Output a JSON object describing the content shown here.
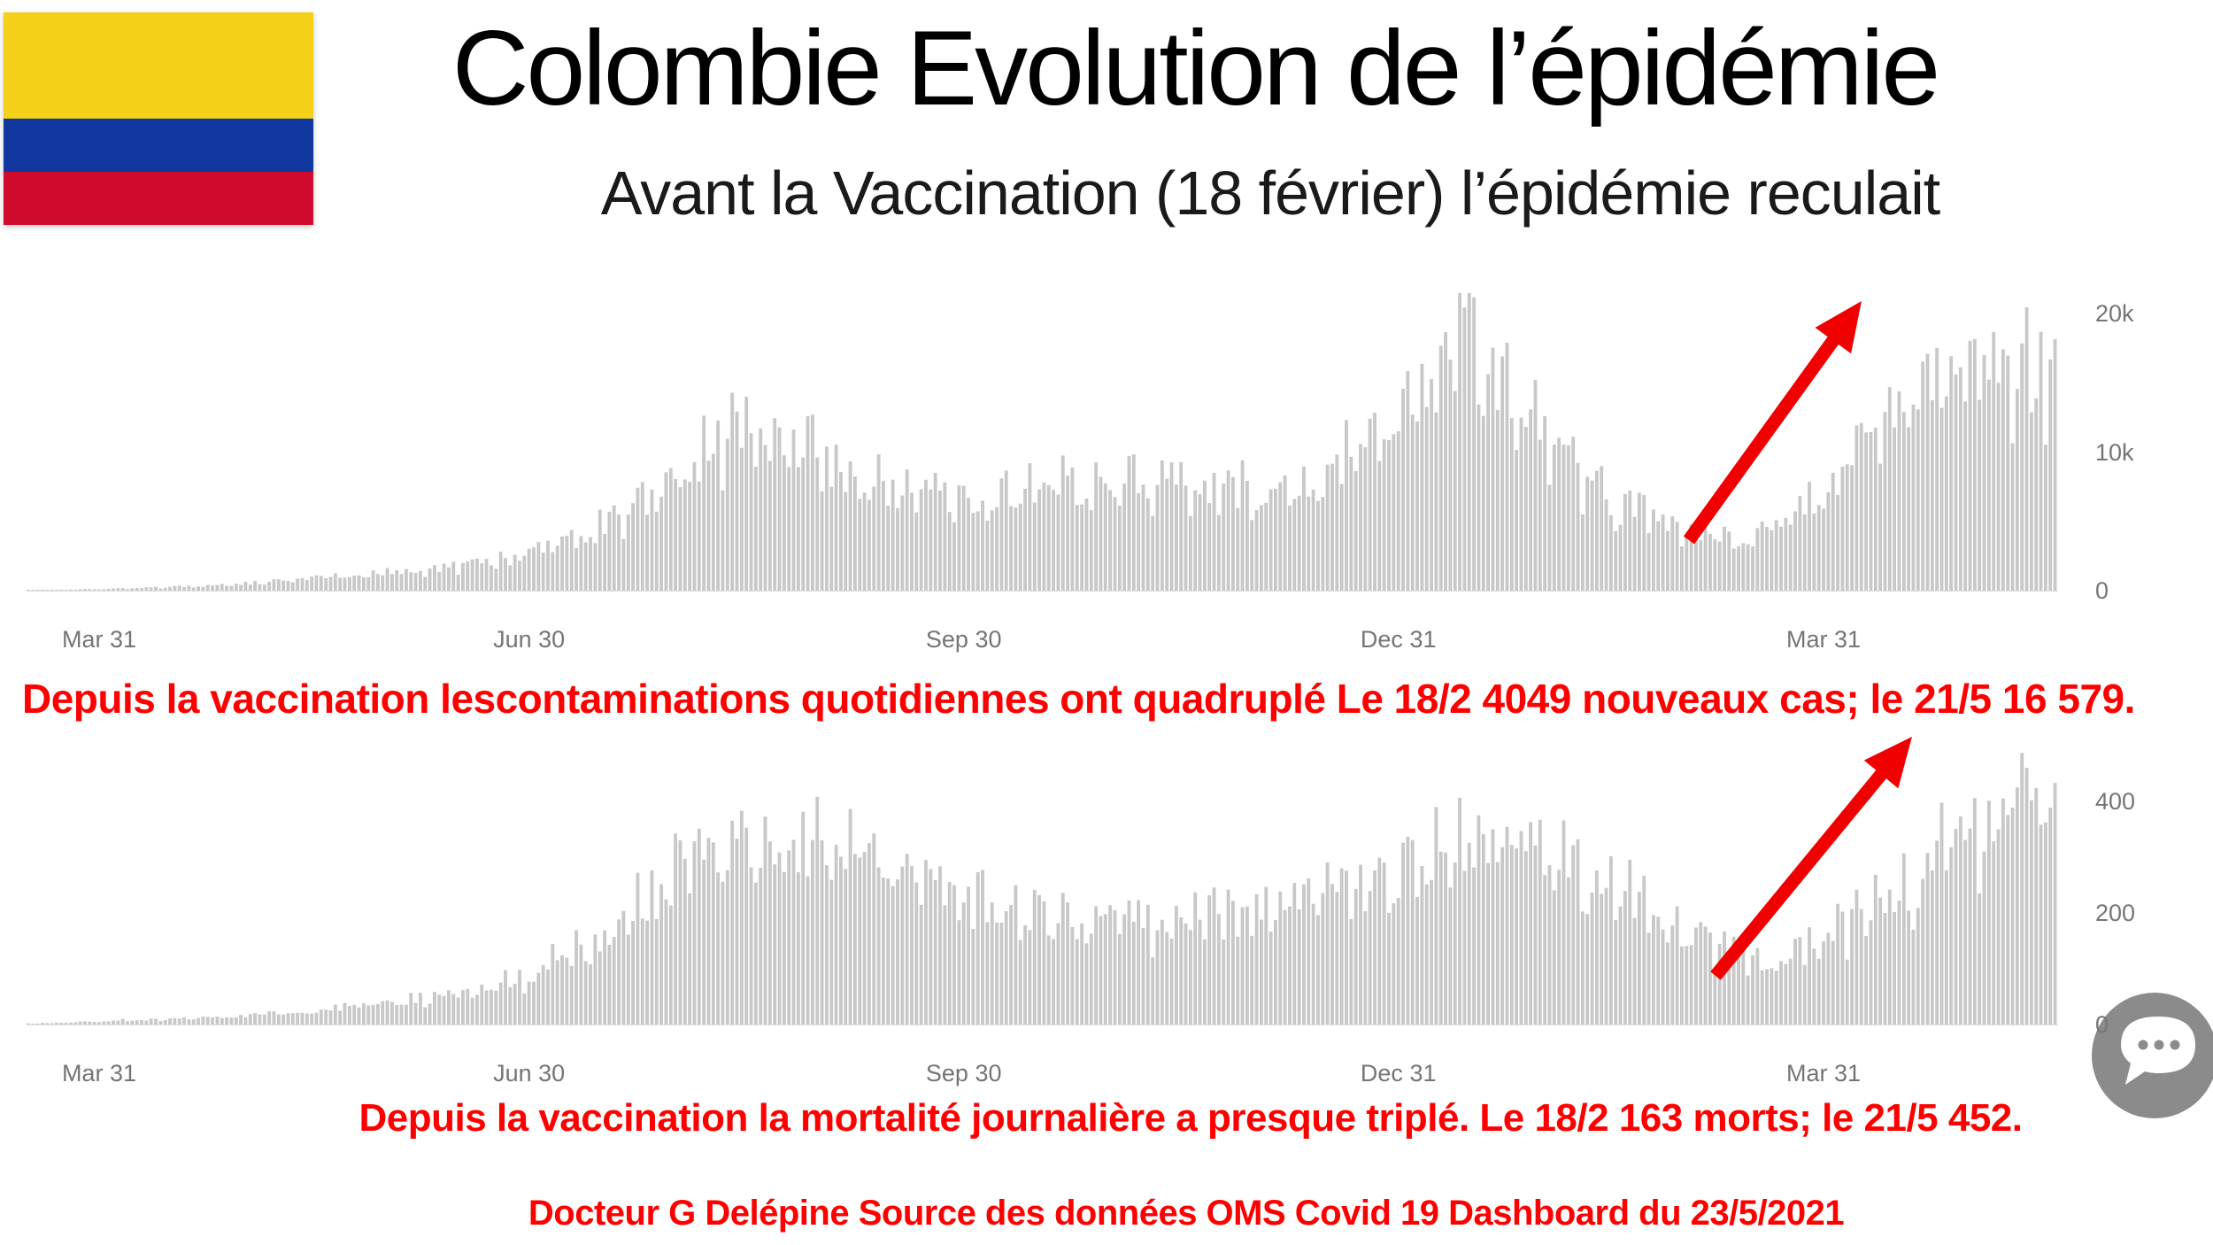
{
  "slide": {
    "title": "Colombie Evolution de l’épidémie",
    "subtitle": "Avant la Vaccination (18 février) l’épidémie reculait",
    "annotation_cases": "Depuis la vaccination lescontaminations quotidiennes ont quadruplé Le 18/2 4049 nouveaux cas; le 21/5 16 579.",
    "annotation_deaths": "Depuis la vaccination la mortalité journalière a presque triplé. Le 18/2 163 morts; le 21/5 452.",
    "footer": "Docteur G Delépine Source des données OMS Covid 19 Dashboard du 23/5/2021",
    "accent_red": "#ff0000"
  },
  "flag": {
    "country": "Colombia",
    "colors": {
      "yellow": "#f5d018",
      "blue": "#0f379e",
      "red": "#d00a2c"
    }
  },
  "chart_data": [
    {
      "type": "bar",
      "series_name": "contaminations quotidiennes (nouveaux cas par jour)",
      "bar_color": "#c8c8c8",
      "n_bars": 430,
      "ylim": [
        0,
        22200
      ],
      "clamp": 21500,
      "seed": 3.7,
      "grid": false,
      "legend": "none",
      "y_ticks": [
        {
          "label": "20k",
          "value": 20000
        },
        {
          "label": "10k",
          "value": 10000
        },
        {
          "label": "0",
          "value": 0
        }
      ],
      "x_ticks": [
        {
          "label": "Mar 31",
          "day": 15
        },
        {
          "label": "Jun 30",
          "day": 106
        },
        {
          "label": "Sep 30",
          "day": 198
        },
        {
          "label": "Dec 31",
          "day": 290
        },
        {
          "label": "Mar 31",
          "day": 380
        }
      ],
      "keypoints": {
        "day": [
          0,
          10,
          20,
          40,
          60,
          90,
          105,
          120,
          135,
          148,
          155,
          165,
          180,
          195,
          210,
          225,
          240,
          255,
          270,
          283,
          295,
          303,
          310,
          322,
          335,
          348,
          358,
          368,
          378,
          388,
          398,
          408,
          418,
          429
        ],
        "value": [
          40,
          80,
          150,
          400,
          900,
          1800,
          2600,
          4500,
          8000,
          11800,
          12300,
          10500,
          8200,
          7000,
          7600,
          8300,
          7800,
          8000,
          8800,
          11000,
          15000,
          19000,
          17000,
          11000,
          7000,
          4600,
          3900,
          4300,
          7000,
          10500,
          13500,
          15500,
          17000,
          16000
        ]
      },
      "annotated_points": [
        {
          "date": "18/2",
          "value": 4049
        },
        {
          "date": "21/5",
          "value": 16579
        }
      ]
    },
    {
      "type": "bar",
      "series_name": "mortalité journalière (morts par jour)",
      "bar_color": "#c8c8c8",
      "n_bars": 430,
      "ylim": [
        0,
        535
      ],
      "clamp": 525,
      "seed": 8.1,
      "grid": false,
      "legend": "none",
      "y_ticks": [
        {
          "label": "400",
          "value": 400
        },
        {
          "label": "200",
          "value": 200
        },
        {
          "label": "0",
          "value": 0
        }
      ],
      "x_ticks": [
        {
          "label": "Mar 31",
          "day": 15
        },
        {
          "label": "Jun 30",
          "day": 106
        },
        {
          "label": "Sep 30",
          "day": 198
        },
        {
          "label": "Dec 31",
          "day": 290
        },
        {
          "label": "Mar 31",
          "day": 380
        }
      ],
      "keypoints": {
        "day": [
          0,
          10,
          20,
          40,
          60,
          90,
          105,
          120,
          133,
          145,
          158,
          170,
          185,
          200,
          215,
          230,
          245,
          260,
          275,
          288,
          300,
          310,
          322,
          335,
          350,
          362,
          372,
          382,
          392,
          402,
          412,
          420,
          429
        ],
        "value": [
          2,
          4,
          8,
          14,
          25,
          55,
          90,
          160,
          260,
          330,
          350,
          330,
          300,
          230,
          195,
          185,
          195,
          210,
          240,
          290,
          330,
          340,
          320,
          260,
          180,
          135,
          125,
          170,
          230,
          300,
          380,
          440,
          460
        ]
      },
      "annotated_points": [
        {
          "date": "18/2",
          "value": 163
        },
        {
          "date": "21/5",
          "value": 452
        }
      ]
    }
  ],
  "chat_widget": {
    "icon": "chat-bubble-icon",
    "dots": 3
  }
}
